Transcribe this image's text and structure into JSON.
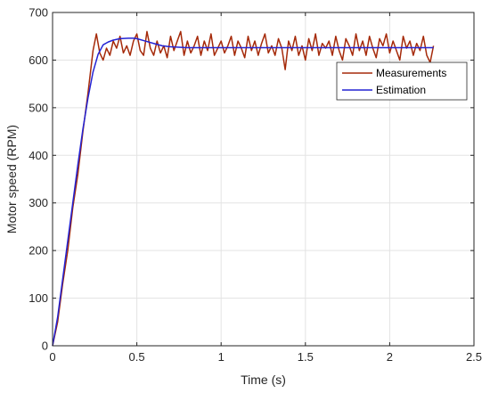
{
  "chart_data": {
    "type": "line",
    "title": "",
    "xlabel": "Time (s)",
    "ylabel": "Motor speed (RPM)",
    "xlim": [
      0,
      2.5
    ],
    "ylim": [
      0,
      700
    ],
    "xticks": [
      0,
      0.5,
      1,
      1.5,
      2,
      2.5
    ],
    "xtick_labels": [
      "0",
      "0.5",
      "1",
      "1.5",
      "2",
      "2.5"
    ],
    "yticks": [
      0,
      100,
      200,
      300,
      400,
      500,
      600,
      700
    ],
    "ytick_labels": [
      "0",
      "100",
      "200",
      "300",
      "400",
      "500",
      "600",
      "700"
    ],
    "grid": true,
    "legend_position": "top-right",
    "series": [
      {
        "name": "Measurements",
        "color": "#a52a0a",
        "x": [
          0,
          0.03,
          0.06,
          0.09,
          0.12,
          0.15,
          0.18,
          0.21,
          0.24,
          0.26,
          0.28,
          0.3,
          0.32,
          0.34,
          0.36,
          0.38,
          0.4,
          0.42,
          0.44,
          0.46,
          0.48,
          0.5,
          0.52,
          0.54,
          0.56,
          0.58,
          0.6,
          0.62,
          0.64,
          0.66,
          0.68,
          0.7,
          0.72,
          0.74,
          0.76,
          0.78,
          0.8,
          0.82,
          0.84,
          0.86,
          0.88,
          0.9,
          0.92,
          0.94,
          0.96,
          0.98,
          1.0,
          1.02,
          1.04,
          1.06,
          1.08,
          1.1,
          1.12,
          1.14,
          1.16,
          1.18,
          1.2,
          1.22,
          1.24,
          1.26,
          1.28,
          1.3,
          1.32,
          1.34,
          1.36,
          1.38,
          1.4,
          1.42,
          1.44,
          1.46,
          1.48,
          1.5,
          1.52,
          1.54,
          1.56,
          1.58,
          1.6,
          1.62,
          1.64,
          1.66,
          1.68,
          1.7,
          1.72,
          1.74,
          1.76,
          1.78,
          1.8,
          1.82,
          1.84,
          1.86,
          1.88,
          1.9,
          1.92,
          1.94,
          1.96,
          1.98,
          2.0,
          2.02,
          2.04,
          2.06,
          2.08,
          2.1,
          2.12,
          2.14,
          2.16,
          2.18,
          2.2,
          2.22,
          2.24,
          2.26
        ],
        "y": [
          0,
          50,
          130,
          200,
          290,
          360,
          450,
          530,
          620,
          655,
          615,
          600,
          625,
          610,
          640,
          625,
          650,
          615,
          630,
          610,
          640,
          655,
          620,
          610,
          660,
          625,
          610,
          640,
          615,
          630,
          605,
          650,
          620,
          640,
          660,
          610,
          640,
          615,
          630,
          650,
          610,
          640,
          620,
          655,
          610,
          625,
          640,
          615,
          630,
          650,
          610,
          640,
          625,
          605,
          650,
          620,
          640,
          610,
          635,
          655,
          615,
          630,
          610,
          645,
          625,
          580,
          640,
          620,
          650,
          610,
          630,
          600,
          645,
          620,
          655,
          610,
          635,
          625,
          640,
          610,
          650,
          620,
          600,
          645,
          630,
          610,
          655,
          620,
          640,
          610,
          650,
          625,
          605,
          645,
          630,
          655,
          615,
          640,
          620,
          600,
          650,
          625,
          640,
          610,
          635,
          620,
          650,
          610,
          595,
          630
        ]
      },
      {
        "name": "Estimation",
        "color": "#2323d4",
        "x": [
          0,
          0.03,
          0.06,
          0.09,
          0.12,
          0.15,
          0.18,
          0.21,
          0.24,
          0.27,
          0.3,
          0.33,
          0.36,
          0.4,
          0.45,
          0.48,
          0.5,
          0.55,
          0.6,
          0.65,
          0.7,
          0.8,
          0.9,
          1.0,
          1.2,
          1.4,
          1.6,
          1.8,
          2.0,
          2.2,
          2.26
        ],
        "y": [
          0,
          60,
          140,
          220,
          300,
          380,
          455,
          520,
          575,
          612,
          632,
          638,
          642,
          645,
          646,
          646,
          645,
          640,
          635,
          630,
          628,
          626,
          626,
          626,
          626,
          626,
          626,
          626,
          626,
          626,
          626
        ]
      }
    ]
  }
}
